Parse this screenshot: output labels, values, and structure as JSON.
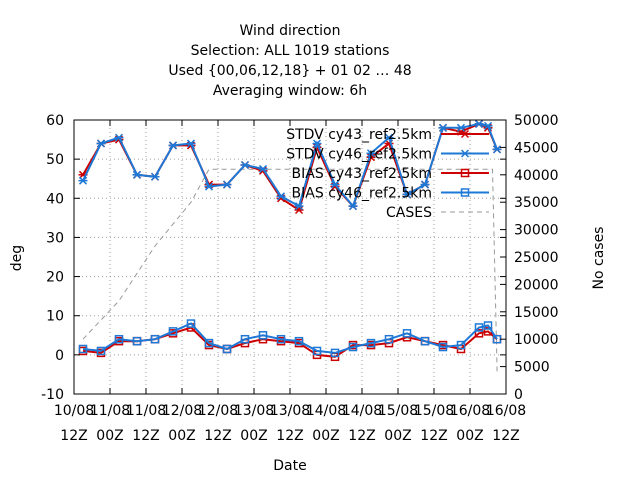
{
  "chart_data": {
    "type": "line",
    "title_lines": [
      "Wind direction",
      "Selection: ALL    1019 stations",
      "Used {00,06,12,18} + 01 02 … 48",
      "Averaging window:  6h"
    ],
    "xlabel": "Date",
    "ylabel": "deg",
    "y2label": "No cases",
    "ylim": [
      -10,
      60
    ],
    "y2lim": [
      0,
      50000
    ],
    "yticks": [
      -10,
      0,
      10,
      20,
      30,
      40,
      50,
      60
    ],
    "y2ticks": [
      0,
      5000,
      10000,
      15000,
      20000,
      25000,
      30000,
      35000,
      40000,
      45000,
      50000
    ],
    "xlim": [
      0,
      144
    ],
    "xticks": [
      {
        "x": 0,
        "l1": "10/08",
        "l2": "12Z"
      },
      {
        "x": 12,
        "l1": "11/08",
        "l2": "00Z"
      },
      {
        "x": 24,
        "l1": "11/08",
        "l2": "12Z"
      },
      {
        "x": 36,
        "l1": "12/08",
        "l2": "00Z"
      },
      {
        "x": 48,
        "l1": "12/08",
        "l2": "12Z"
      },
      {
        "x": 60,
        "l1": "13/08",
        "l2": "00Z"
      },
      {
        "x": 72,
        "l1": "13/08",
        "l2": "12Z"
      },
      {
        "x": 84,
        "l1": "14/08",
        "l2": "00Z"
      },
      {
        "x": 96,
        "l1": "14/08",
        "l2": "12Z"
      },
      {
        "x": 108,
        "l1": "15/08",
        "l2": "00Z"
      },
      {
        "x": 120,
        "l1": "15/08",
        "l2": "12Z"
      },
      {
        "x": 132,
        "l1": "16/08",
        "l2": "00Z"
      },
      {
        "x": 144,
        "l1": "16/08",
        "l2": "12Z"
      }
    ],
    "grid": true,
    "legend_position": "top-right",
    "x": [
      3,
      9,
      15,
      21,
      27,
      33,
      39,
      45,
      51,
      57,
      63,
      69,
      75,
      81,
      87,
      93,
      99,
      105,
      111,
      117,
      123,
      129,
      135,
      138,
      141
    ],
    "series": [
      {
        "name": "STDV cy43_ref2.5km",
        "axis": "y1",
        "color": "#cc0000",
        "marker": "x",
        "values": [
          46.0,
          54.0,
          55.0,
          46.0,
          45.5,
          53.5,
          53.5,
          43.5,
          43.5,
          48.5,
          47.0,
          40.0,
          37.0,
          53.0,
          43.0,
          38.0,
          50.5,
          54.0,
          41.0,
          43.5,
          58.0,
          57.0,
          59.0,
          58.0,
          52.5
        ]
      },
      {
        "name": "STDV cy46_ref2.5km",
        "axis": "y1",
        "color": "#1e78d6",
        "marker": "x",
        "values": [
          44.5,
          54.0,
          55.5,
          46.0,
          45.5,
          53.5,
          54.0,
          43.0,
          43.5,
          48.5,
          47.5,
          40.5,
          38.0,
          54.0,
          43.5,
          38.0,
          51.5,
          55.5,
          41.0,
          43.5,
          58.0,
          58.0,
          59.0,
          58.5,
          52.5
        ]
      },
      {
        "name": "BIAS cy43_ref2.5km",
        "axis": "y1",
        "color": "#cc0000",
        "marker": "square",
        "values": [
          1.0,
          0.5,
          3.5,
          3.5,
          4.0,
          5.5,
          7.0,
          2.5,
          1.5,
          3.0,
          4.0,
          3.5,
          3.0,
          0.0,
          -0.5,
          2.5,
          2.5,
          3.0,
          4.5,
          3.5,
          2.5,
          1.5,
          5.5,
          6.0,
          4.0
        ]
      },
      {
        "name": "BIAS cy46_ref2.5km",
        "axis": "y1",
        "color": "#1e78d6",
        "marker": "square",
        "values": [
          1.5,
          1.0,
          4.0,
          3.5,
          4.0,
          6.0,
          8.0,
          3.0,
          1.5,
          4.0,
          5.0,
          4.0,
          3.5,
          1.0,
          0.5,
          2.0,
          3.0,
          4.0,
          5.5,
          3.5,
          2.0,
          2.5,
          7.0,
          7.5,
          4.0
        ]
      },
      {
        "name": "CASES",
        "axis": "y2",
        "color": "#999999",
        "marker": "none",
        "dashed": true,
        "x": [
          3,
          15,
          27,
          39,
          45,
          60,
          75,
          90,
          105,
          120,
          132,
          138,
          139.5,
          141,
          141
        ],
        "values": [
          10000,
          17000,
          27000,
          35000,
          41000,
          41000,
          41000,
          41000,
          41000,
          41000,
          41000,
          41000,
          41000,
          5000,
          4000
        ]
      }
    ]
  }
}
